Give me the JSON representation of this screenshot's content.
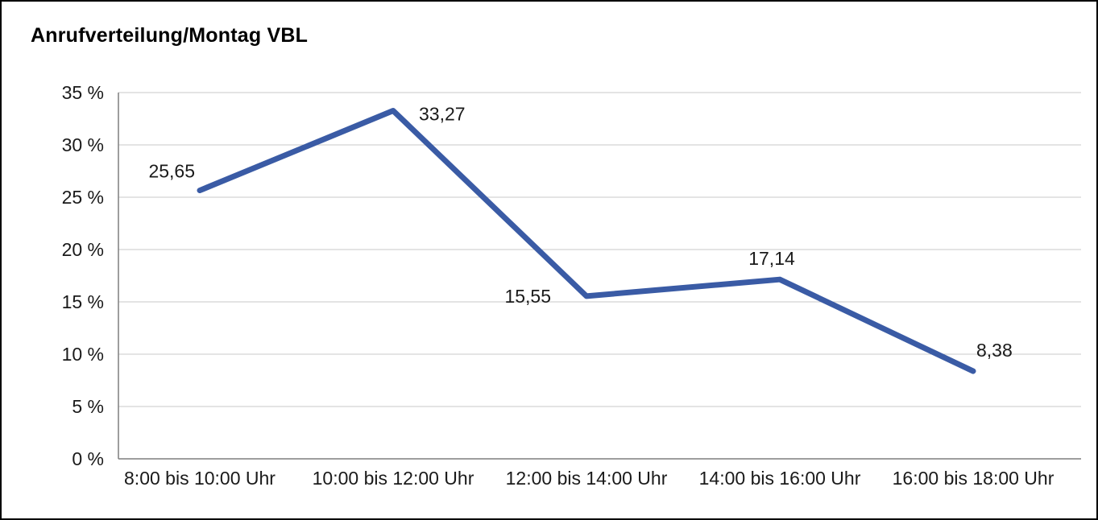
{
  "chart_data": {
    "type": "line",
    "title": "Anrufverteilung/Montag VBL",
    "categories": [
      "8:00 bis 10:00 Uhr",
      "10:00 bis 12:00 Uhr",
      "12:00 bis 14:00 Uhr",
      "14:00 bis 16:00 Uhr",
      "16:00 bis 18:00 Uhr"
    ],
    "values": [
      25.65,
      33.27,
      15.55,
      17.14,
      8.38
    ],
    "value_labels": [
      "25,65",
      "33,27",
      "15,55",
      "17,14",
      "8,38"
    ],
    "xlabel": "",
    "ylabel": "",
    "ylim": [
      0,
      35
    ],
    "ytick_step": 5,
    "ytick_labels": [
      "0 %",
      "5 %",
      "10 %",
      "15 %",
      "20 %",
      "25 %",
      "30 %",
      "35 %"
    ],
    "grid": "horizontal",
    "legend": "none",
    "colors": {
      "line": "#3A5BA5",
      "grid": "#C9C9C9",
      "axis": "#7F7F7F",
      "text": "#1A1A1A",
      "title": "#000000",
      "background": "#FFFFFF",
      "frame_border": "#000000"
    }
  }
}
